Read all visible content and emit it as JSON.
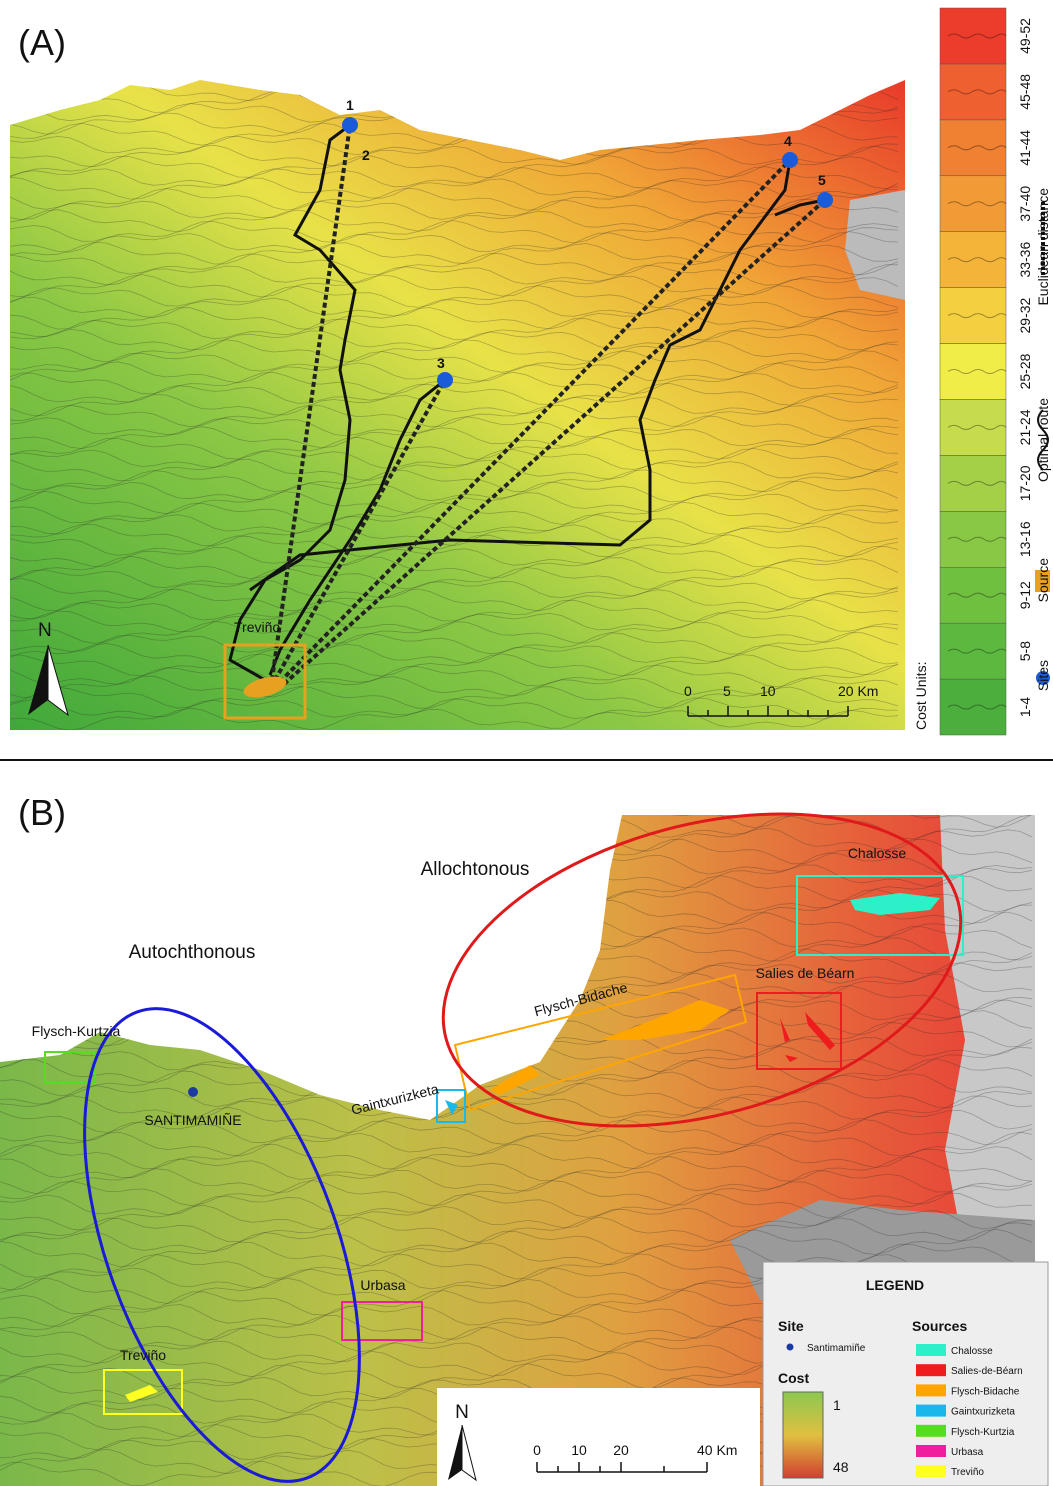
{
  "panel_a": {
    "label": "(A)",
    "sites": [
      "1",
      "2",
      "3",
      "4",
      "5"
    ],
    "source_label": "Treviño",
    "north": "N",
    "scale": [
      "0",
      "5",
      "10",
      "20 Km"
    ],
    "legend": {
      "title": "Cost Units:",
      "classes": [
        {
          "label": "1-4",
          "color": "#4caf3d"
        },
        {
          "label": "5-8",
          "color": "#5cb83e"
        },
        {
          "label": "9-12",
          "color": "#70c040"
        },
        {
          "label": "13-16",
          "color": "#88c845"
        },
        {
          "label": "17-20",
          "color": "#a4d048"
        },
        {
          "label": "21-24",
          "color": "#c6dc4c"
        },
        {
          "label": "25-28",
          "color": "#f0ec48"
        },
        {
          "label": "29-32",
          "color": "#f4d040"
        },
        {
          "label": "33-36",
          "color": "#f4b43a"
        },
        {
          "label": "37-40",
          "color": "#f29a36"
        },
        {
          "label": "41-44",
          "color": "#f08032"
        },
        {
          "label": "45-48",
          "color": "#ee6030"
        },
        {
          "label": "49-52",
          "color": "#ec3c2c"
        }
      ],
      "items": [
        "Sites",
        "Source",
        "Optimal route",
        "Euclidean distance"
      ]
    }
  },
  "panel_b": {
    "label": "(B)",
    "groups": [
      "Allochtonous",
      "Autochthonous"
    ],
    "places": {
      "chalosse": "Chalosse",
      "salies": "Salies de Béarn",
      "bidache": "Flysch-Bidache",
      "gaintxurizketa": "Gaintxurizketa",
      "kurtzia": "Flysch-Kurtzia",
      "site": "SANTIMAMIÑE",
      "urbasa": "Urbasa",
      "trevino": "Treviño"
    },
    "north": "N",
    "scale": [
      "0",
      "10",
      "20",
      "40 Km"
    ],
    "legend": {
      "title": "LEGEND",
      "site_heading": "Site",
      "site": "Santimamiñe",
      "cost_heading": "Cost",
      "cost_min": "1",
      "cost_max": "48",
      "sources_heading": "Sources",
      "sources": [
        {
          "name": "Chalosse",
          "color": "#2ef0c8"
        },
        {
          "name": "Salies-de-Béarn",
          "color": "#ee1c1c"
        },
        {
          "name": "Flysch-Bidache",
          "color": "#ffa500"
        },
        {
          "name": "Gaintxurizketa",
          "color": "#1ab7ea"
        },
        {
          "name": "Flysch-Kurtzia",
          "color": "#55dd22"
        },
        {
          "name": "Urbasa",
          "color": "#ee1e9e"
        },
        {
          "name": "Treviño",
          "color": "#ffff22"
        }
      ]
    }
  }
}
